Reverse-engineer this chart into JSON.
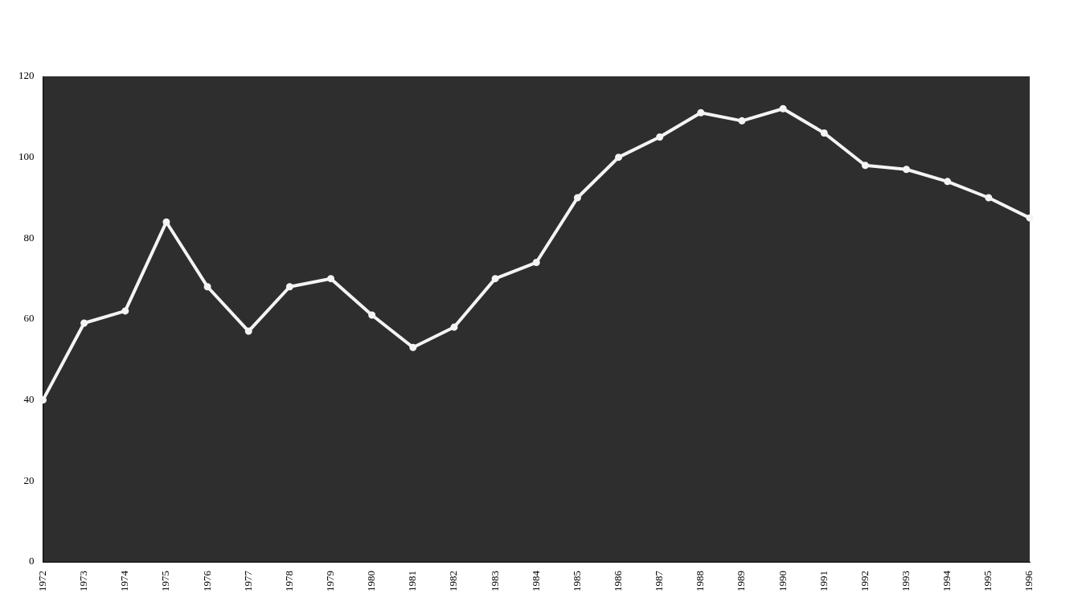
{
  "chart_data": {
    "type": "line",
    "categories": [
      "1972",
      "1973",
      "1974",
      "1975",
      "1976",
      "1977",
      "1978",
      "1979",
      "1980",
      "1981",
      "1982",
      "1983",
      "1984",
      "1985",
      "1986",
      "1987",
      "1988",
      "1989",
      "1990",
      "1991",
      "1992",
      "1993",
      "1994",
      "1995",
      "1996"
    ],
    "series": [
      {
        "color": "#f4f4f4",
        "values": [
          40,
          59,
          62,
          84,
          68,
          57,
          68,
          70,
          61,
          53,
          58,
          70,
          74,
          90,
          100,
          105,
          111,
          109,
          112,
          106,
          98,
          97,
          94,
          90,
          85
        ]
      }
    ],
    "ylim": [
      0,
      120
    ],
    "yticks": [
      0,
      20,
      40,
      60,
      80,
      100,
      120
    ],
    "grid": false,
    "legend": false,
    "marker": "circle",
    "line_style": "solid"
  }
}
